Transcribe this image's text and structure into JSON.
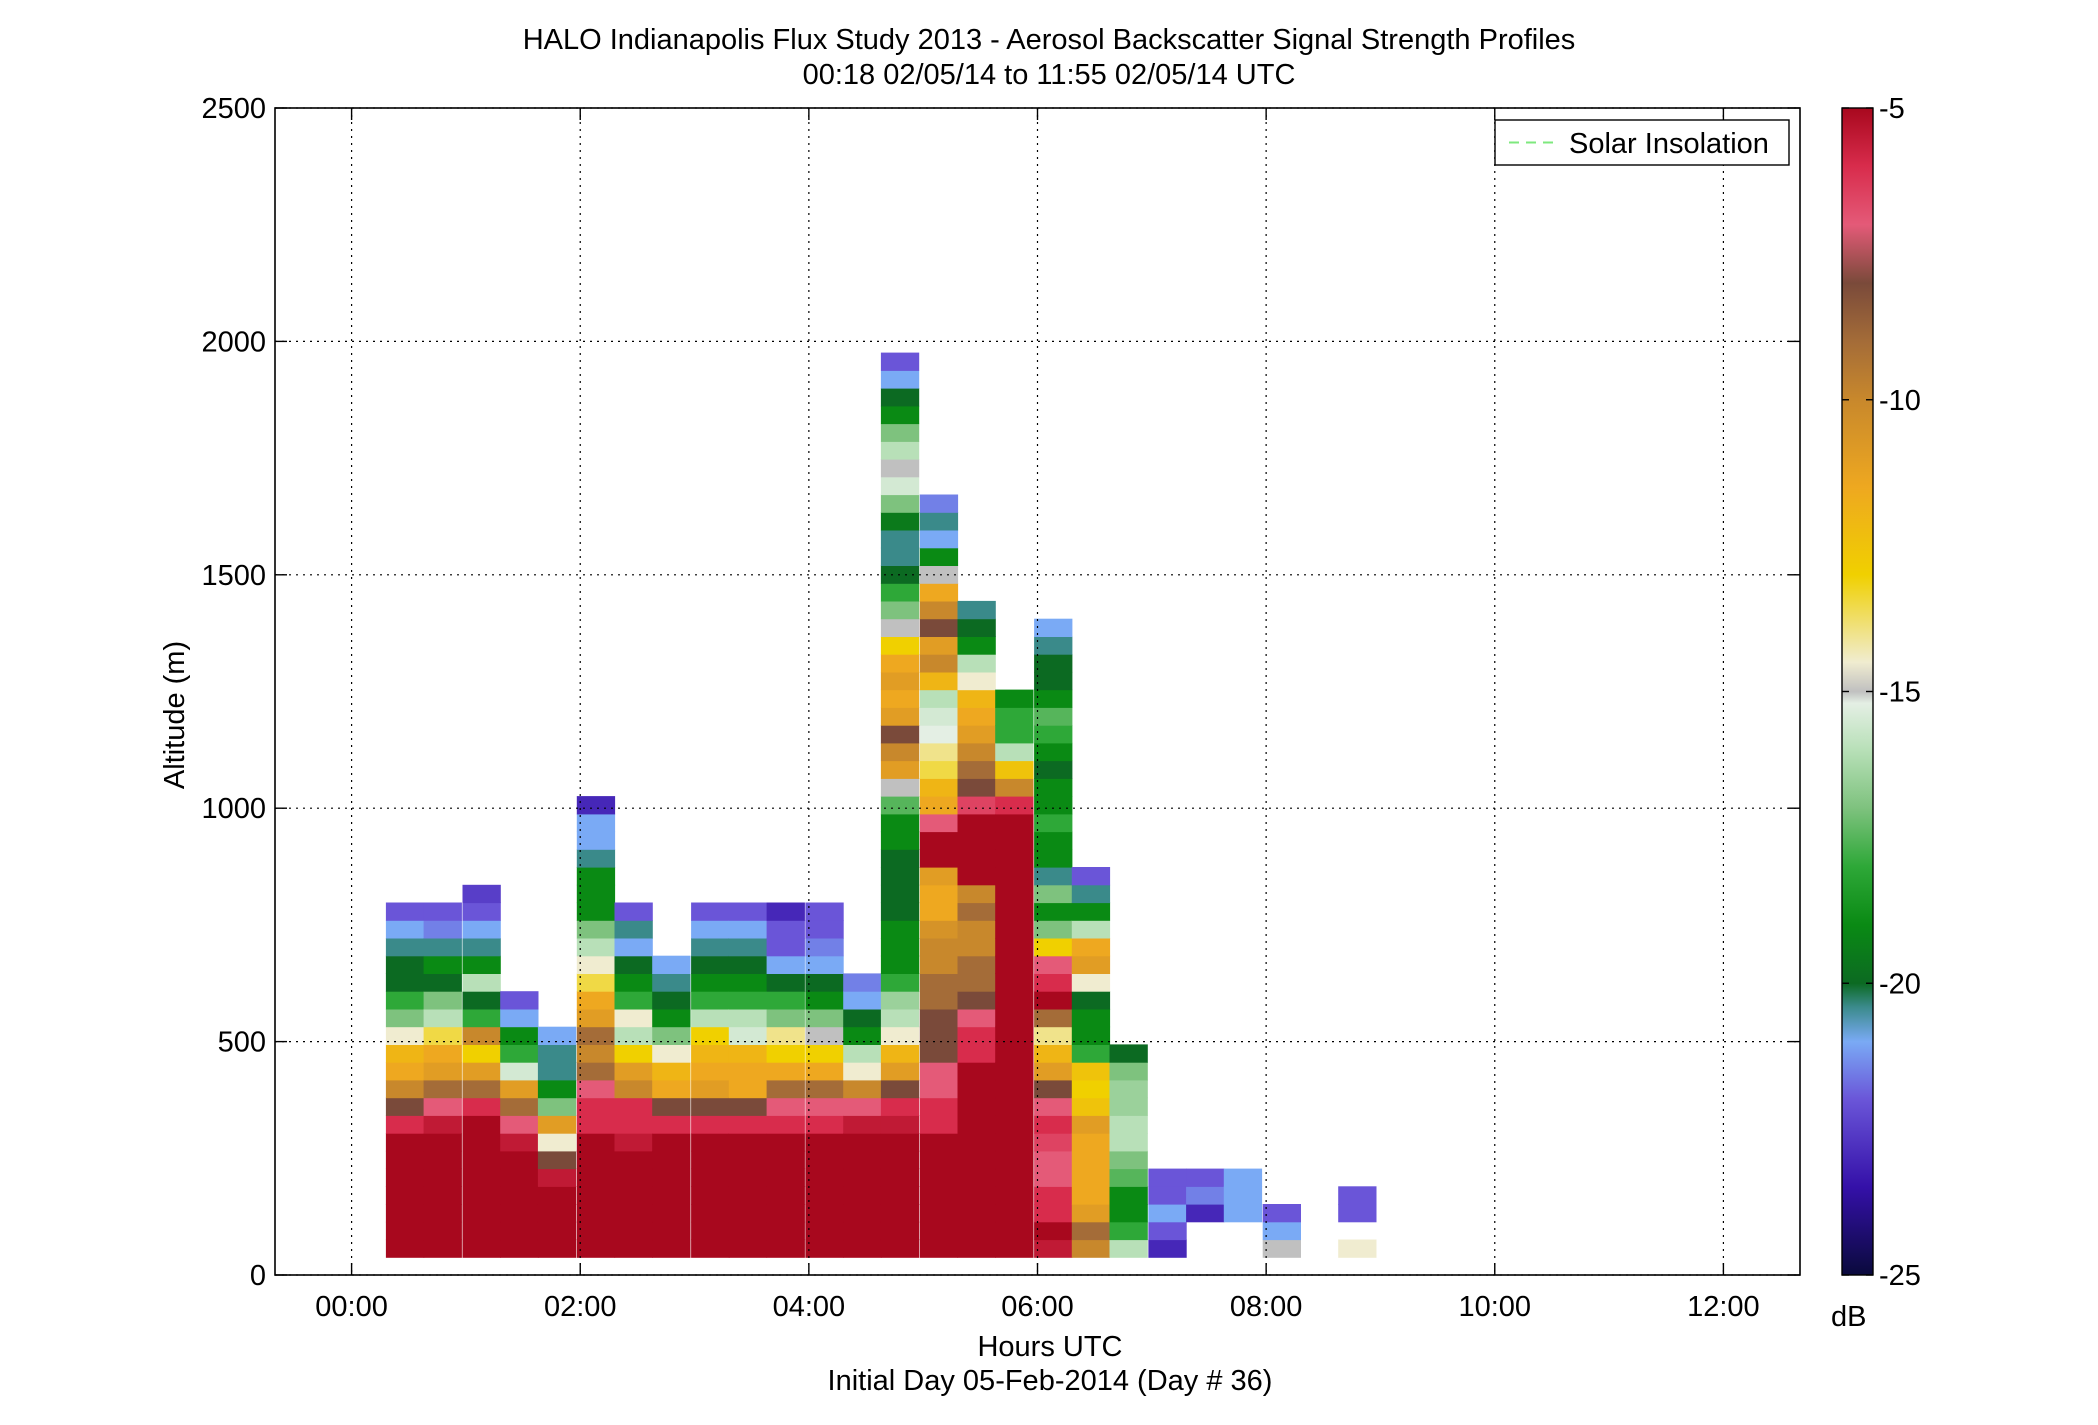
{
  "chart_data": {
    "type": "heatmap",
    "title": "HALO Indianapolis Flux Study 2013 - Aerosol Backscatter Signal Strength Profiles",
    "subtitle": "00:18 02/05/14 to 11:55 02/05/14  UTC",
    "xlabel": "Hours UTC",
    "xlabel2": "Initial Day 05-Feb-2014 (Day # 36)",
    "ylabel": "Altitude (m)",
    "colorbar_label": "dB",
    "x_range_hours": [
      -0.67,
      12.67
    ],
    "y_range_m": [
      0,
      2500
    ],
    "x_ticks": [
      {
        "hour": 0,
        "label": "00:00"
      },
      {
        "hour": 2,
        "label": "02:00"
      },
      {
        "hour": 4,
        "label": "04:00"
      },
      {
        "hour": 6,
        "label": "06:00"
      },
      {
        "hour": 8,
        "label": "08:00"
      },
      {
        "hour": 10,
        "label": "10:00"
      },
      {
        "hour": 12,
        "label": "12:00"
      }
    ],
    "y_ticks": [
      {
        "value": 0,
        "label": "0"
      },
      {
        "value": 500,
        "label": "500"
      },
      {
        "value": 1000,
        "label": "1000"
      },
      {
        "value": 1500,
        "label": "1500"
      },
      {
        "value": 2000,
        "label": "2000"
      },
      {
        "value": 2500,
        "label": "2500"
      }
    ],
    "colorbar_range_db": [
      -25,
      -5
    ],
    "colorbar_ticks": [
      {
        "value": -5,
        "label": "-5"
      },
      {
        "value": -10,
        "label": "-10"
      },
      {
        "value": -15,
        "label": "-15"
      },
      {
        "value": -20,
        "label": "-20"
      },
      {
        "value": -25,
        "label": "-25"
      }
    ],
    "grid": true,
    "legend": {
      "label": "Solar Insolation",
      "placement": "top-right",
      "color": "#7ee87e",
      "style": "dashed"
    },
    "colormap_stops": [
      {
        "db": -25,
        "color": "#0a0a3c"
      },
      {
        "db": -23.5,
        "color": "#3410a8"
      },
      {
        "db": -22,
        "color": "#6a55d8"
      },
      {
        "db": -21,
        "color": "#7aaaf5"
      },
      {
        "db": -20.4,
        "color": "#3a8a8a"
      },
      {
        "db": -20,
        "color": "#0c6a22"
      },
      {
        "db": -19,
        "color": "#0a8a14"
      },
      {
        "db": -18,
        "color": "#2ea838"
      },
      {
        "db": -17,
        "color": "#7ec27e"
      },
      {
        "db": -16,
        "color": "#b8e0b8"
      },
      {
        "db": -15.2,
        "color": "#e4efe4"
      },
      {
        "db": -15,
        "color": "#c0c0c0"
      },
      {
        "db": -14.5,
        "color": "#f0ecd0"
      },
      {
        "db": -13,
        "color": "#f0d000"
      },
      {
        "db": -11.5,
        "color": "#eea820"
      },
      {
        "db": -10,
        "color": "#c8882c"
      },
      {
        "db": -9,
        "color": "#a46c38"
      },
      {
        "db": -8,
        "color": "#7a4a3a"
      },
      {
        "db": -7,
        "color": "#e45a78"
      },
      {
        "db": -6,
        "color": "#d82c4c"
      },
      {
        "db": -5,
        "color": "#a8081e"
      }
    ],
    "alt_step_m": 38,
    "alt_start_m": 38,
    "profiles": [
      {
        "time": 0.3,
        "values": [
          -5,
          -5,
          -5,
          -5,
          -5,
          -5,
          -5,
          -6,
          -8,
          -10,
          -11.5,
          -12,
          -14.5,
          -17,
          -18,
          -20,
          -20,
          -20.4,
          -21,
          -22
        ]
      },
      {
        "time": 0.63,
        "values": [
          -5,
          -5,
          -5,
          -5,
          -5,
          -5,
          -5,
          -5.5,
          -7,
          -9,
          -11,
          -11.5,
          -13.5,
          -16,
          -17,
          -20,
          -19,
          -20.4,
          -21.5,
          -22
        ]
      },
      {
        "time": 0.97,
        "values": [
          -5,
          -5,
          -5,
          -5,
          -5,
          -5,
          -5,
          -5,
          -6,
          -9,
          -11,
          -13,
          -10,
          -18,
          -20,
          -16,
          -19,
          -20.4,
          -21,
          -22,
          -22.5
        ]
      },
      {
        "time": 1.3,
        "values": [
          -5,
          -5,
          -5,
          -5,
          -5,
          -5,
          -5.5,
          -7,
          -9,
          -11,
          -15.5,
          -18,
          -19,
          -21,
          -22
        ]
      },
      {
        "time": 1.63,
        "values": [
          -5,
          -5,
          -5,
          -5,
          -5.5,
          -8,
          -14.5,
          -11,
          -17,
          -19,
          -20.4,
          -20.4,
          -21
        ]
      },
      {
        "time": 1.97,
        "values": [
          -5,
          -5,
          -5,
          -5,
          -5,
          -5,
          -5,
          -6,
          -6,
          -7,
          -9,
          -10,
          -9,
          -11,
          -11.5,
          -13.5,
          -14.5,
          -16,
          -17,
          -19,
          -19,
          -19,
          -20.4,
          -21,
          -21,
          -23
        ]
      },
      {
        "time": 2.3,
        "values": [
          -5,
          -5,
          -5,
          -5,
          -5,
          -5,
          -5.5,
          -6,
          -6,
          -10,
          -11,
          -13,
          -16,
          -14.5,
          -18,
          -19,
          -20,
          -21,
          -20.4,
          -22
        ]
      },
      {
        "time": 2.63,
        "values": [
          -5,
          -5,
          -5,
          -5,
          -5,
          -5,
          -5,
          -6,
          -8,
          -11.5,
          -12,
          -14.5,
          -17,
          -19,
          -20,
          -20.4,
          -21
        ]
      },
      {
        "time": 2.97,
        "values": [
          -5,
          -5,
          -5,
          -5,
          -5,
          -5,
          -5,
          -6,
          -8,
          -11,
          -11.5,
          -12,
          -13,
          -16,
          -18,
          -19,
          -20,
          -20.4,
          -21,
          -22
        ]
      },
      {
        "time": 3.3,
        "values": [
          -5,
          -5,
          -5,
          -5,
          -5,
          -5,
          -5,
          -6,
          -8,
          -11.5,
          -11.5,
          -12,
          -15.5,
          -16,
          -18,
          -19,
          -20,
          -20.4,
          -21,
          -22
        ]
      },
      {
        "time": 3.63,
        "values": [
          -5,
          -5,
          -5,
          -5,
          -5,
          -5,
          -5,
          -6,
          -7,
          -9,
          -11.5,
          -13,
          -14,
          -17,
          -18,
          -20,
          -21,
          -22,
          -22,
          -23
        ]
      },
      {
        "time": 3.97,
        "values": [
          -5,
          -5,
          -5,
          -5,
          -5,
          -5,
          -5,
          -6,
          -7,
          -9,
          -11.5,
          -13,
          -15,
          -17,
          -19,
          -20,
          -21,
          -21.5,
          -22,
          -22
        ]
      },
      {
        "time": 4.3,
        "values": [
          -5,
          -5,
          -5,
          -5,
          -5,
          -5,
          -5,
          -5.5,
          -7,
          -10,
          -14.5,
          -16,
          -19,
          -20,
          -21,
          -21.5
        ]
      },
      {
        "time": 4.63,
        "values": [
          -5,
          -5,
          -5,
          -5,
          -5,
          -5,
          -5,
          -5.5,
          -6,
          -8,
          -11,
          -12,
          -14.5,
          -16,
          -16.5,
          -18,
          -19,
          -19,
          -19,
          -20,
          -20,
          -20,
          -20,
          -19,
          -19,
          -17.5,
          -15,
          -11,
          -10,
          -8,
          -11,
          -11.5,
          -11,
          -11.5,
          -13,
          -15,
          -17,
          -18,
          -20,
          -20.4,
          -20.4,
          -19.5,
          -17,
          -15.5,
          -15,
          -16,
          -17,
          -19,
          -20,
          -21,
          -22
        ]
      },
      {
        "time": 4.97,
        "values": [
          -5,
          -5,
          -5,
          -5,
          -5,
          -5,
          -5,
          -6,
          -6,
          -7,
          -7,
          -8,
          -8,
          -8,
          -9,
          -9,
          -10,
          -10,
          -10.5,
          -11.5,
          -11.5,
          -11,
          -5,
          -5,
          -7,
          -11.5,
          -12,
          -13.5,
          -14,
          -15.2,
          -15.5,
          -16,
          -12,
          -10,
          -11,
          -8,
          -10,
          -11.5,
          -15,
          -19,
          -21,
          -20.4,
          -21.5
        ]
      },
      {
        "time": 5.3,
        "values": [
          -5,
          -5,
          -5,
          -5,
          -5,
          -5,
          -5,
          -5,
          -5,
          -5,
          -5,
          -6,
          -6,
          -7,
          -8,
          -9,
          -9,
          -10,
          -10,
          -9,
          -10,
          -5,
          -5,
          -5,
          -5,
          -6.5,
          -8,
          -9,
          -10,
          -11,
          -11.5,
          -12,
          -14.5,
          -16,
          -19,
          -20,
          -20.4
        ]
      },
      {
        "time": 5.63,
        "values": [
          -5,
          -5,
          -5,
          -5,
          -5,
          -5,
          -5,
          -5,
          -5,
          -5,
          -5,
          -5,
          -5,
          -5,
          -5,
          -5,
          -5,
          -5,
          -5,
          -5,
          -5,
          -5,
          -5,
          -5,
          -5,
          -6,
          -10,
          -12.5,
          -16,
          -18,
          -18,
          -19
        ]
      },
      {
        "time": 5.97,
        "values": [
          -5.5,
          -5,
          -6,
          -6,
          -7,
          -7,
          -6.5,
          -6,
          -7,
          -8,
          -11,
          -12,
          -14,
          -9,
          -5,
          -6,
          -7,
          -13,
          -17,
          -19,
          -17,
          -20.4,
          -19,
          -19,
          -18,
          -19,
          -19,
          -20,
          -19,
          -18,
          -17.5,
          -19,
          -20,
          -20,
          -20.4,
          -21
        ]
      },
      {
        "time": 6.3,
        "values": [
          -10,
          -9,
          -11,
          -11.5,
          -11.5,
          -11.5,
          -11.5,
          -11,
          -12.5,
          -13,
          -12.5,
          -18,
          -19,
          -19,
          -20,
          -14.5,
          -11,
          -11.5,
          -16,
          -19,
          -20.4,
          -22
        ]
      },
      {
        "time": 6.63,
        "values": [
          -16,
          -18,
          -19,
          -19,
          -17.5,
          -17,
          -16,
          -16,
          -16.5,
          -16.5,
          -17,
          -20
        ]
      },
      {
        "time": 6.97,
        "values": [
          -23,
          -22,
          -21,
          -22,
          -22
        ]
      },
      {
        "time": 7.3,
        "values": [
          -200,
          -200,
          -23,
          -21.5,
          -22
        ]
      },
      {
        "time": 7.63,
        "values": [
          -200,
          -200,
          -21,
          -21,
          -21
        ]
      },
      {
        "time": 7.97,
        "values": [
          -15,
          -21,
          -22
        ]
      },
      {
        "time": 8.63,
        "values": [
          -14.5,
          -200,
          -22,
          -22
        ]
      }
    ]
  }
}
